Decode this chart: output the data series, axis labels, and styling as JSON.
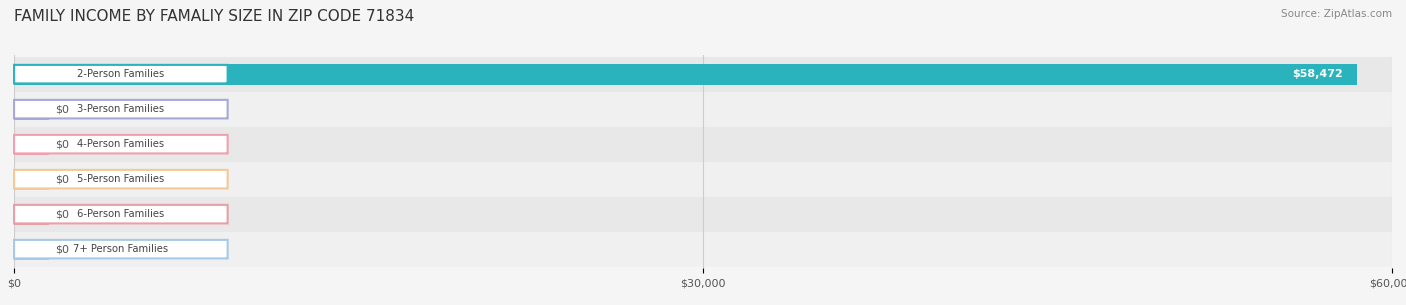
{
  "title": "FAMILY INCOME BY FAMALIY SIZE IN ZIP CODE 71834",
  "source": "Source: ZipAtlas.com",
  "categories": [
    "2-Person Families",
    "3-Person Families",
    "4-Person Families",
    "5-Person Families",
    "6-Person Families",
    "7+ Person Families"
  ],
  "values": [
    58472,
    0,
    0,
    0,
    0,
    0
  ],
  "bar_colors": [
    "#2ab3bc",
    "#a8a8d8",
    "#f0a0b0",
    "#f5c897",
    "#e8a0a8",
    "#a8c8e8"
  ],
  "label_colors": [
    "#2ab3bc",
    "#a8a8d8",
    "#f0a0b0",
    "#f5c897",
    "#e8a0a8",
    "#a8c8e8"
  ],
  "xlim": [
    0,
    60000
  ],
  "xtick_values": [
    0,
    30000,
    60000
  ],
  "xtick_labels": [
    "$0",
    "$30,000",
    "$60,000"
  ],
  "bar_height": 0.6,
  "background_color": "#f5f5f5",
  "row_bg_colors": [
    "#e8e8e8",
    "#f0f0f0"
  ],
  "title_fontsize": 11,
  "label_fontsize": 8,
  "value_color_bar": "#ffffff",
  "value_color_zero": "#555555"
}
